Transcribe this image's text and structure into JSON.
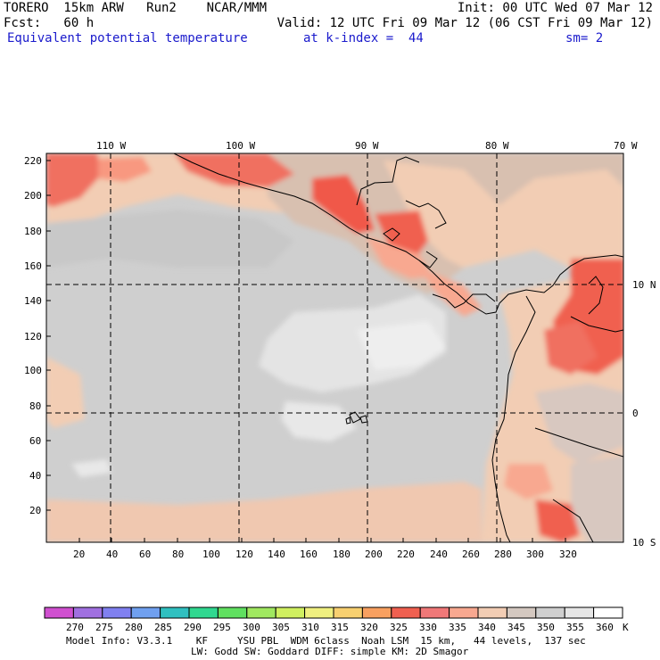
{
  "header": {
    "line1_left": "TORERO  15km ARW   Run2    NCAR/MMM",
    "line1_right": "Init: 00 UTC Wed 07 Mar 12",
    "line2_left": "Fcst:   60 h",
    "line2_right": "Valid: 12 UTC Fri 09 Mar 12 (06 CST Fri 09 Mar 12)",
    "line3_field": "Equivalent potential temperature",
    "line3_level": "at k-index =  44",
    "line3_sm": "sm= 2"
  },
  "map": {
    "lon_labels": [
      "110 W",
      "100 W",
      "90 W",
      "80 W",
      "70 W"
    ],
    "lat_labels": [
      "10 N",
      "0",
      "10 S"
    ],
    "y_ticks": [
      "220",
      "200",
      "180",
      "160",
      "140",
      "120",
      "100",
      "80",
      "60",
      "40",
      "20"
    ],
    "x_ticks": [
      "20",
      "40",
      "60",
      "80",
      "100",
      "120",
      "140",
      "160",
      "180",
      "200",
      "220",
      "240",
      "260",
      "280",
      "300",
      "320"
    ]
  },
  "colorbar": {
    "labels": [
      "270",
      "275",
      "280",
      "285",
      "290",
      "295",
      "300",
      "305",
      "310",
      "315",
      "320",
      "325",
      "330",
      "335",
      "340",
      "345",
      "350",
      "355",
      "360"
    ],
    "unit": "K",
    "colors": [
      "#d050d0",
      "#a070e0",
      "#8080f0",
      "#70a0f0",
      "#30c0c0",
      "#30d890",
      "#60e060",
      "#a0e860",
      "#d0f060",
      "#f0f080",
      "#f8d070",
      "#f8a060",
      "#f06050",
      "#f07878",
      "#f8a890",
      "#f2cdb4",
      "#d4c8c0",
      "#cfcfcf",
      "#e6e6e6",
      "#ffffff"
    ]
  },
  "footer": {
    "line1": "Model Info: V3.3.1    KF     YSU PBL  WDM 6class  Noah LSM  15 km,   44 levels,  137 sec",
    "line2": "LW: Godd SW: Goddard DIFF: simple KM: 2D Smagor"
  }
}
